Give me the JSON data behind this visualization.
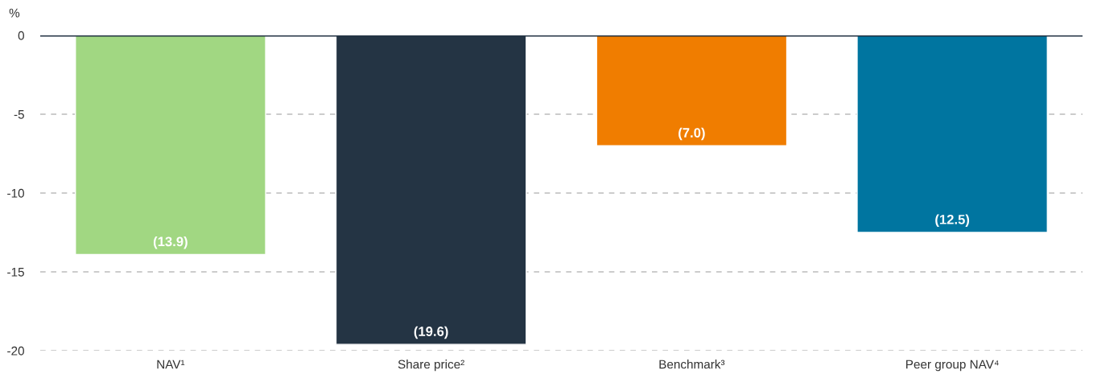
{
  "chart_data": {
    "type": "bar",
    "ylabel": "%",
    "categories": [
      "NAV¹",
      "Share price²",
      "Benchmark³",
      "Peer group NAV⁴"
    ],
    "values": [
      -13.9,
      -19.6,
      -7.0,
      -12.5
    ],
    "colors": [
      "#a1d782",
      "#243444",
      "#f07d00",
      "#0075a0"
    ],
    "value_labels": [
      "(13.9)",
      "(19.6)",
      "(7.0)",
      "(12.5)"
    ],
    "ylim": [
      -20,
      0
    ],
    "yticks": [
      -20,
      -15,
      -10,
      -5,
      0
    ],
    "grid": "y",
    "ref_lines": [
      {
        "axis": "y",
        "value": 0,
        "color": "#243444"
      }
    ]
  }
}
